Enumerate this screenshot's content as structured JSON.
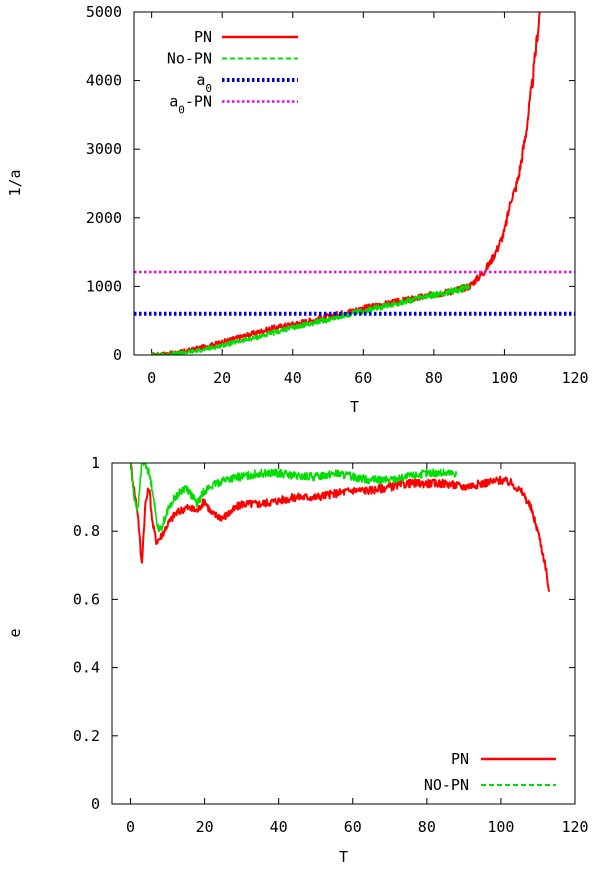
{
  "chart_data": [
    {
      "type": "line",
      "title": "",
      "xlabel": "T",
      "ylabel": "1/a",
      "xlim": [
        -5,
        120
      ],
      "ylim": [
        0,
        5000
      ],
      "xticks": [
        "0",
        "20",
        "40",
        "60",
        "80",
        "100",
        "120"
      ],
      "yticks": [
        "0",
        "1000",
        "2000",
        "3000",
        "4000",
        "5000"
      ],
      "legend_position": "top-left",
      "series": [
        {
          "name": "PN",
          "color": "#ff0000",
          "style": "solid",
          "x": [
            0,
            5,
            10,
            15,
            20,
            25,
            30,
            35,
            40,
            45,
            50,
            55,
            60,
            65,
            70,
            75,
            80,
            85,
            90,
            92,
            94,
            96,
            98,
            100,
            101,
            102,
            103,
            104,
            105,
            106,
            107,
            108,
            109,
            110
          ],
          "y": [
            0,
            20,
            60,
            120,
            190,
            260,
            330,
            400,
            450,
            500,
            560,
            620,
            680,
            730,
            780,
            830,
            880,
            930,
            1000,
            1100,
            1200,
            1350,
            1550,
            1800,
            2050,
            2300,
            2400,
            2600,
            2900,
            3200,
            3600,
            4000,
            4500,
            5000
          ]
        },
        {
          "name": "No-PN",
          "color": "#00dd00",
          "style": "dashed",
          "x": [
            0,
            5,
            10,
            15,
            20,
            25,
            30,
            35,
            40,
            45,
            50,
            55,
            60,
            65,
            70,
            75,
            80,
            85,
            90
          ],
          "y": [
            0,
            10,
            40,
            80,
            140,
            200,
            260,
            330,
            400,
            460,
            520,
            580,
            640,
            700,
            760,
            820,
            870,
            930,
            990
          ]
        },
        {
          "name": "a_0",
          "color": "#0000dd",
          "style": "dotted",
          "x": [
            -5,
            120
          ],
          "y": [
            600,
            600
          ]
        },
        {
          "name": "a_0-PN",
          "color": "#ee00ee",
          "style": "dotted",
          "x": [
            -5,
            120
          ],
          "y": [
            1210,
            1210
          ]
        }
      ]
    },
    {
      "type": "line",
      "title": "",
      "xlabel": "T",
      "ylabel": "e",
      "xlim": [
        -5,
        120
      ],
      "ylim": [
        0,
        1
      ],
      "xticks": [
        "0",
        "20",
        "40",
        "60",
        "80",
        "100",
        "120"
      ],
      "yticks": [
        "0",
        "0.2",
        "0.4",
        "0.6",
        "0.8",
        "1"
      ],
      "legend_position": "bottom-right",
      "series": [
        {
          "name": "PN",
          "color": "#ff0000",
          "style": "solid",
          "x": [
            0,
            1,
            2,
            3,
            4,
            5,
            6,
            7,
            8,
            10,
            12,
            15,
            18,
            20,
            22,
            25,
            30,
            35,
            40,
            45,
            50,
            55,
            60,
            65,
            70,
            75,
            80,
            85,
            90,
            95,
            100,
            103,
            106,
            108,
            110,
            112,
            113
          ],
          "y": [
            1.0,
            0.92,
            0.85,
            0.7,
            0.88,
            0.93,
            0.82,
            0.77,
            0.78,
            0.82,
            0.85,
            0.87,
            0.86,
            0.89,
            0.85,
            0.84,
            0.88,
            0.88,
            0.89,
            0.9,
            0.9,
            0.91,
            0.92,
            0.92,
            0.93,
            0.94,
            0.94,
            0.94,
            0.93,
            0.94,
            0.95,
            0.94,
            0.91,
            0.87,
            0.8,
            0.7,
            0.62
          ]
        },
        {
          "name": "NO-PN",
          "color": "#00dd00",
          "style": "dashed",
          "x": [
            0,
            1,
            2,
            3,
            4,
            5,
            6,
            7,
            8,
            10,
            12,
            15,
            18,
            20,
            25,
            30,
            35,
            40,
            45,
            50,
            55,
            60,
            65,
            70,
            75,
            80,
            85,
            88
          ],
          "y": [
            1.0,
            0.9,
            0.86,
            1.0,
            1.0,
            0.97,
            0.92,
            0.83,
            0.8,
            0.86,
            0.9,
            0.93,
            0.88,
            0.92,
            0.95,
            0.96,
            0.97,
            0.97,
            0.96,
            0.96,
            0.97,
            0.96,
            0.95,
            0.95,
            0.96,
            0.97,
            0.97,
            0.97
          ]
        }
      ]
    }
  ]
}
